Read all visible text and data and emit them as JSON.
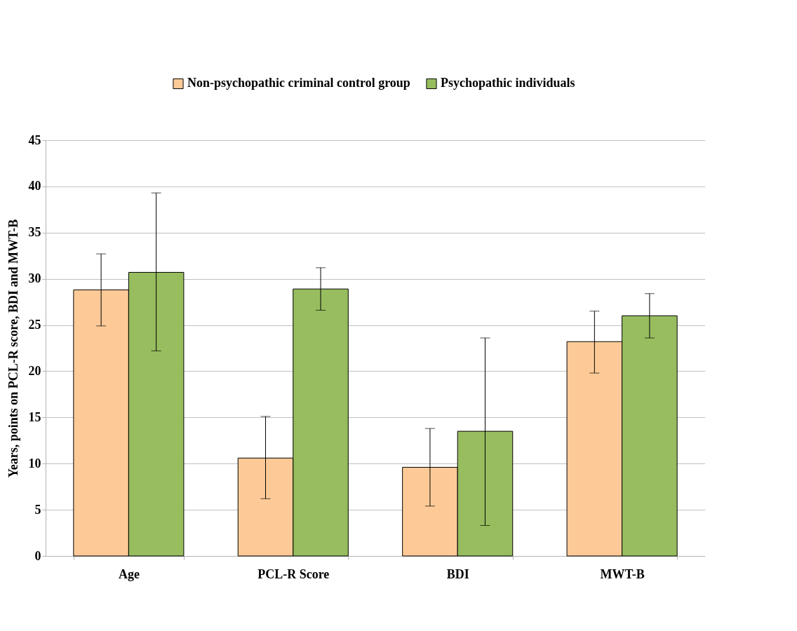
{
  "chart_data": {
    "type": "bar",
    "categories": [
      "Age",
      "PCL-R Score",
      "BDI",
      "MWT-B"
    ],
    "ylabel": "Years, points on PCL-R score, BDI and MWT-B",
    "series": [
      {
        "name": "Non-psychopathic criminal control group",
        "color": "#fdca97",
        "values": [
          28.8,
          10.6,
          9.6,
          23.2
        ],
        "errors": [
          [
            24.9,
            32.7
          ],
          [
            6.2,
            15.1
          ],
          [
            5.4,
            13.8
          ],
          [
            19.8,
            26.5
          ]
        ]
      },
      {
        "name": "Psychopathic individuals",
        "color": "#97bd5f",
        "values": [
          30.7,
          28.9,
          13.5,
          26.0
        ],
        "errors": [
          [
            22.2,
            39.3
          ],
          [
            26.6,
            31.2
          ],
          [
            3.3,
            23.6
          ],
          [
            23.6,
            28.4
          ]
        ]
      }
    ],
    "ylim": [
      0,
      45
    ],
    "yticks": [
      0,
      5,
      10,
      15,
      20,
      25,
      30,
      35,
      40,
      45
    ],
    "grid": "y",
    "legend": "top right"
  }
}
